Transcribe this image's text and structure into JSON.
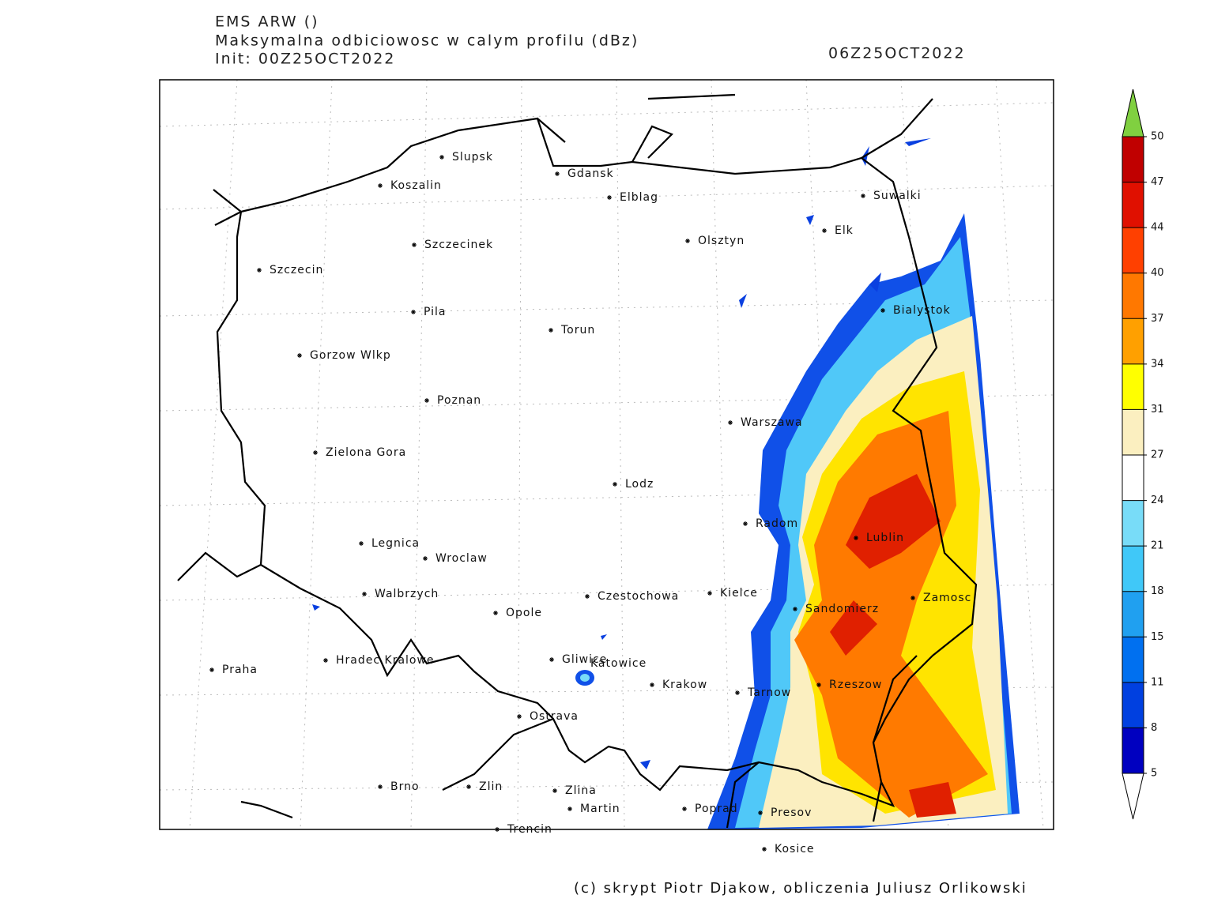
{
  "header": {
    "model": "EMS ARW ()",
    "title": "Maksymalna odbiciowosc w calym profilu (dBz)",
    "init": "Init: 00Z25OCT2022",
    "valid_time": "06Z25OCT2022"
  },
  "cities": [
    "Slupsk",
    "Koszalin",
    "Gdansk",
    "Elblag",
    "Suwalki",
    "Elk",
    "Olsztyn",
    "Szczecinek",
    "Szczecin",
    "Bialystok",
    "Pila",
    "Torun",
    "Gorzow Wlkp",
    "Poznan",
    "Warszawa",
    "Zielona Gora",
    "Lodz",
    "Radom",
    "Lublin",
    "Legnica",
    "Wroclaw",
    "Walbrzych",
    "Czestochowa",
    "Kielce",
    "Zamosc",
    "Sandomierz",
    "Opole",
    "Hradec Kralowe",
    "Praha",
    "Gliwice",
    "Katowice",
    "Krakow",
    "Rzeszow",
    "Tarnow",
    "Ostrava",
    "Brno",
    "Zlin",
    "Zlina",
    "Martin",
    "Poprad",
    "Presov",
    "Trencin",
    "Kosice"
  ],
  "colorbar": {
    "ticks": [
      5,
      8,
      11,
      15,
      18,
      21,
      24,
      27,
      31,
      34,
      37,
      40,
      44,
      47,
      50
    ],
    "colors": [
      "#0000c0",
      "#0040e0",
      "#0070f0",
      "#20a0f0",
      "#40c8f8",
      "#78dcf8",
      "#ffffff",
      "#fbefc0",
      "#ffff00",
      "#ffa000",
      "#ff7800",
      "#ff4000",
      "#e01000",
      "#c00000"
    ],
    "over_color": "#80d040",
    "under_color": "#ffffff"
  },
  "footer": "(c) skrypt Piotr Djakow, obliczenia Juliusz Orlikowski"
}
